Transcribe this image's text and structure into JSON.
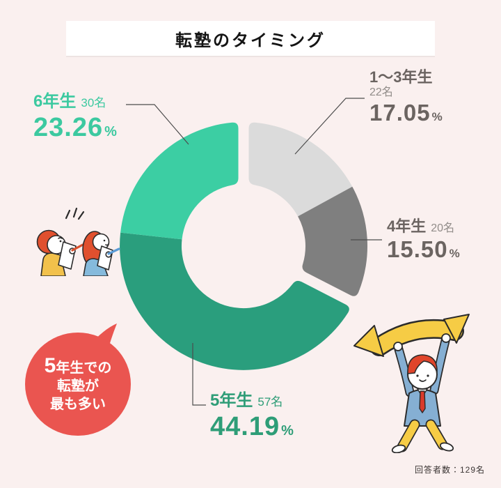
{
  "header": {
    "title": "転塾のタイミング"
  },
  "ui": {
    "percent_sign": "%"
  },
  "chart_data": {
    "type": "pie",
    "title": "転塾のタイミング",
    "donut": true,
    "hole_ratio": 0.5,
    "start_angle_deg_clockwise_from_top": 0,
    "direction": "clockwise",
    "total_respondents": 129,
    "categories": [
      "1〜3年生",
      "4年生",
      "5年生",
      "6年生"
    ],
    "values": [
      22,
      20,
      57,
      30
    ],
    "segments": [
      {
        "label": "1〜3年生",
        "count": 22,
        "count_label": "22名",
        "percent": 17.05,
        "percent_label": "17.05",
        "color": "#DBDBDB"
      },
      {
        "label": "4年生",
        "count": 20,
        "count_label": "20名",
        "percent": 15.5,
        "percent_label": "15.50",
        "color": "#7F7F7F"
      },
      {
        "label": "5年生",
        "count": 57,
        "count_label": "57名",
        "percent": 44.19,
        "percent_label": "44.19",
        "color": "#2A9E7D"
      },
      {
        "label": "6年生",
        "count": 30,
        "count_label": "30名",
        "percent": 23.26,
        "percent_label": "23.26",
        "color": "#3CCEA3"
      }
    ],
    "gaps_after": [
      "4年生",
      "6年生"
    ],
    "annotation": "5年生での転塾が最も多い"
  },
  "callout": {
    "line1_prefix": "5",
    "line1_rest": "年生での",
    "line2": "転塾が",
    "line3": "最も多い",
    "color": "#EA5550",
    "text_color": "#FFFFFF"
  },
  "footnote": {
    "text": "回答者数：129名"
  }
}
